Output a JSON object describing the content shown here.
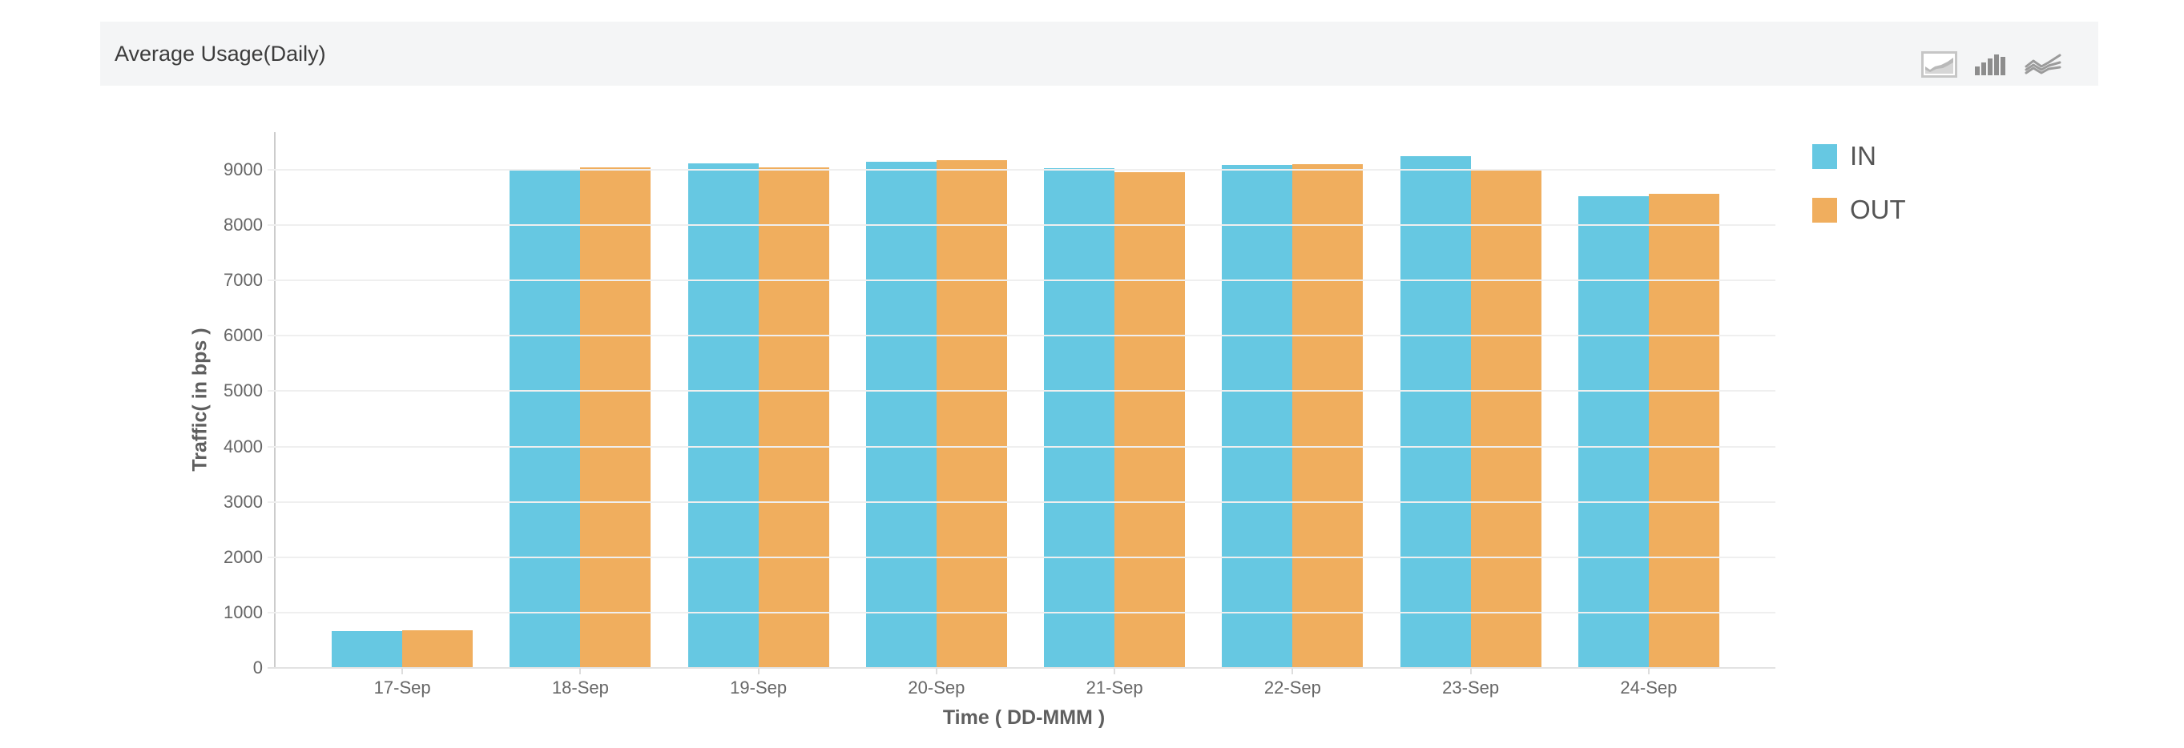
{
  "header": {
    "title": "Average Usage(Daily)",
    "chart_type_icons": [
      {
        "name": "area-chart-icon",
        "selected": true
      },
      {
        "name": "bar-chart-icon",
        "selected": false
      },
      {
        "name": "line-chart-icon",
        "selected": false
      }
    ]
  },
  "chart_data": {
    "type": "bar",
    "title": "Average Usage(Daily)",
    "categories": [
      "17-Sep",
      "18-Sep",
      "19-Sep",
      "20-Sep",
      "21-Sep",
      "22-Sep",
      "23-Sep",
      "24-Sep"
    ],
    "series": [
      {
        "name": "IN",
        "color": "#66C8E2",
        "values": [
          670,
          9010,
          9110,
          9140,
          9030,
          9080,
          9240,
          8520
        ]
      },
      {
        "name": "OUT",
        "color": "#F0AE5E",
        "values": [
          680,
          9040,
          9050,
          9180,
          8950,
          9100,
          9000,
          8570
        ]
      }
    ],
    "xlabel": "Time ( DD-MMM )",
    "ylabel": "Traffic( in bps )",
    "ylim": [
      0,
      9680
    ],
    "yticks": [
      0,
      1000,
      2000,
      3000,
      4000,
      5000,
      6000,
      7000,
      8000,
      9000
    ],
    "grid": true,
    "legend_position": "right"
  },
  "colors": {
    "header_bg": "#f4f5f6",
    "gridline": "#efefef",
    "axis_line": "#cccccc",
    "tick_label": "#666666",
    "axis_title": "#5f5f5f",
    "legend_label": "#555555",
    "title_text": "#3c3c3c",
    "icon_gray": "#9b9b9b"
  }
}
